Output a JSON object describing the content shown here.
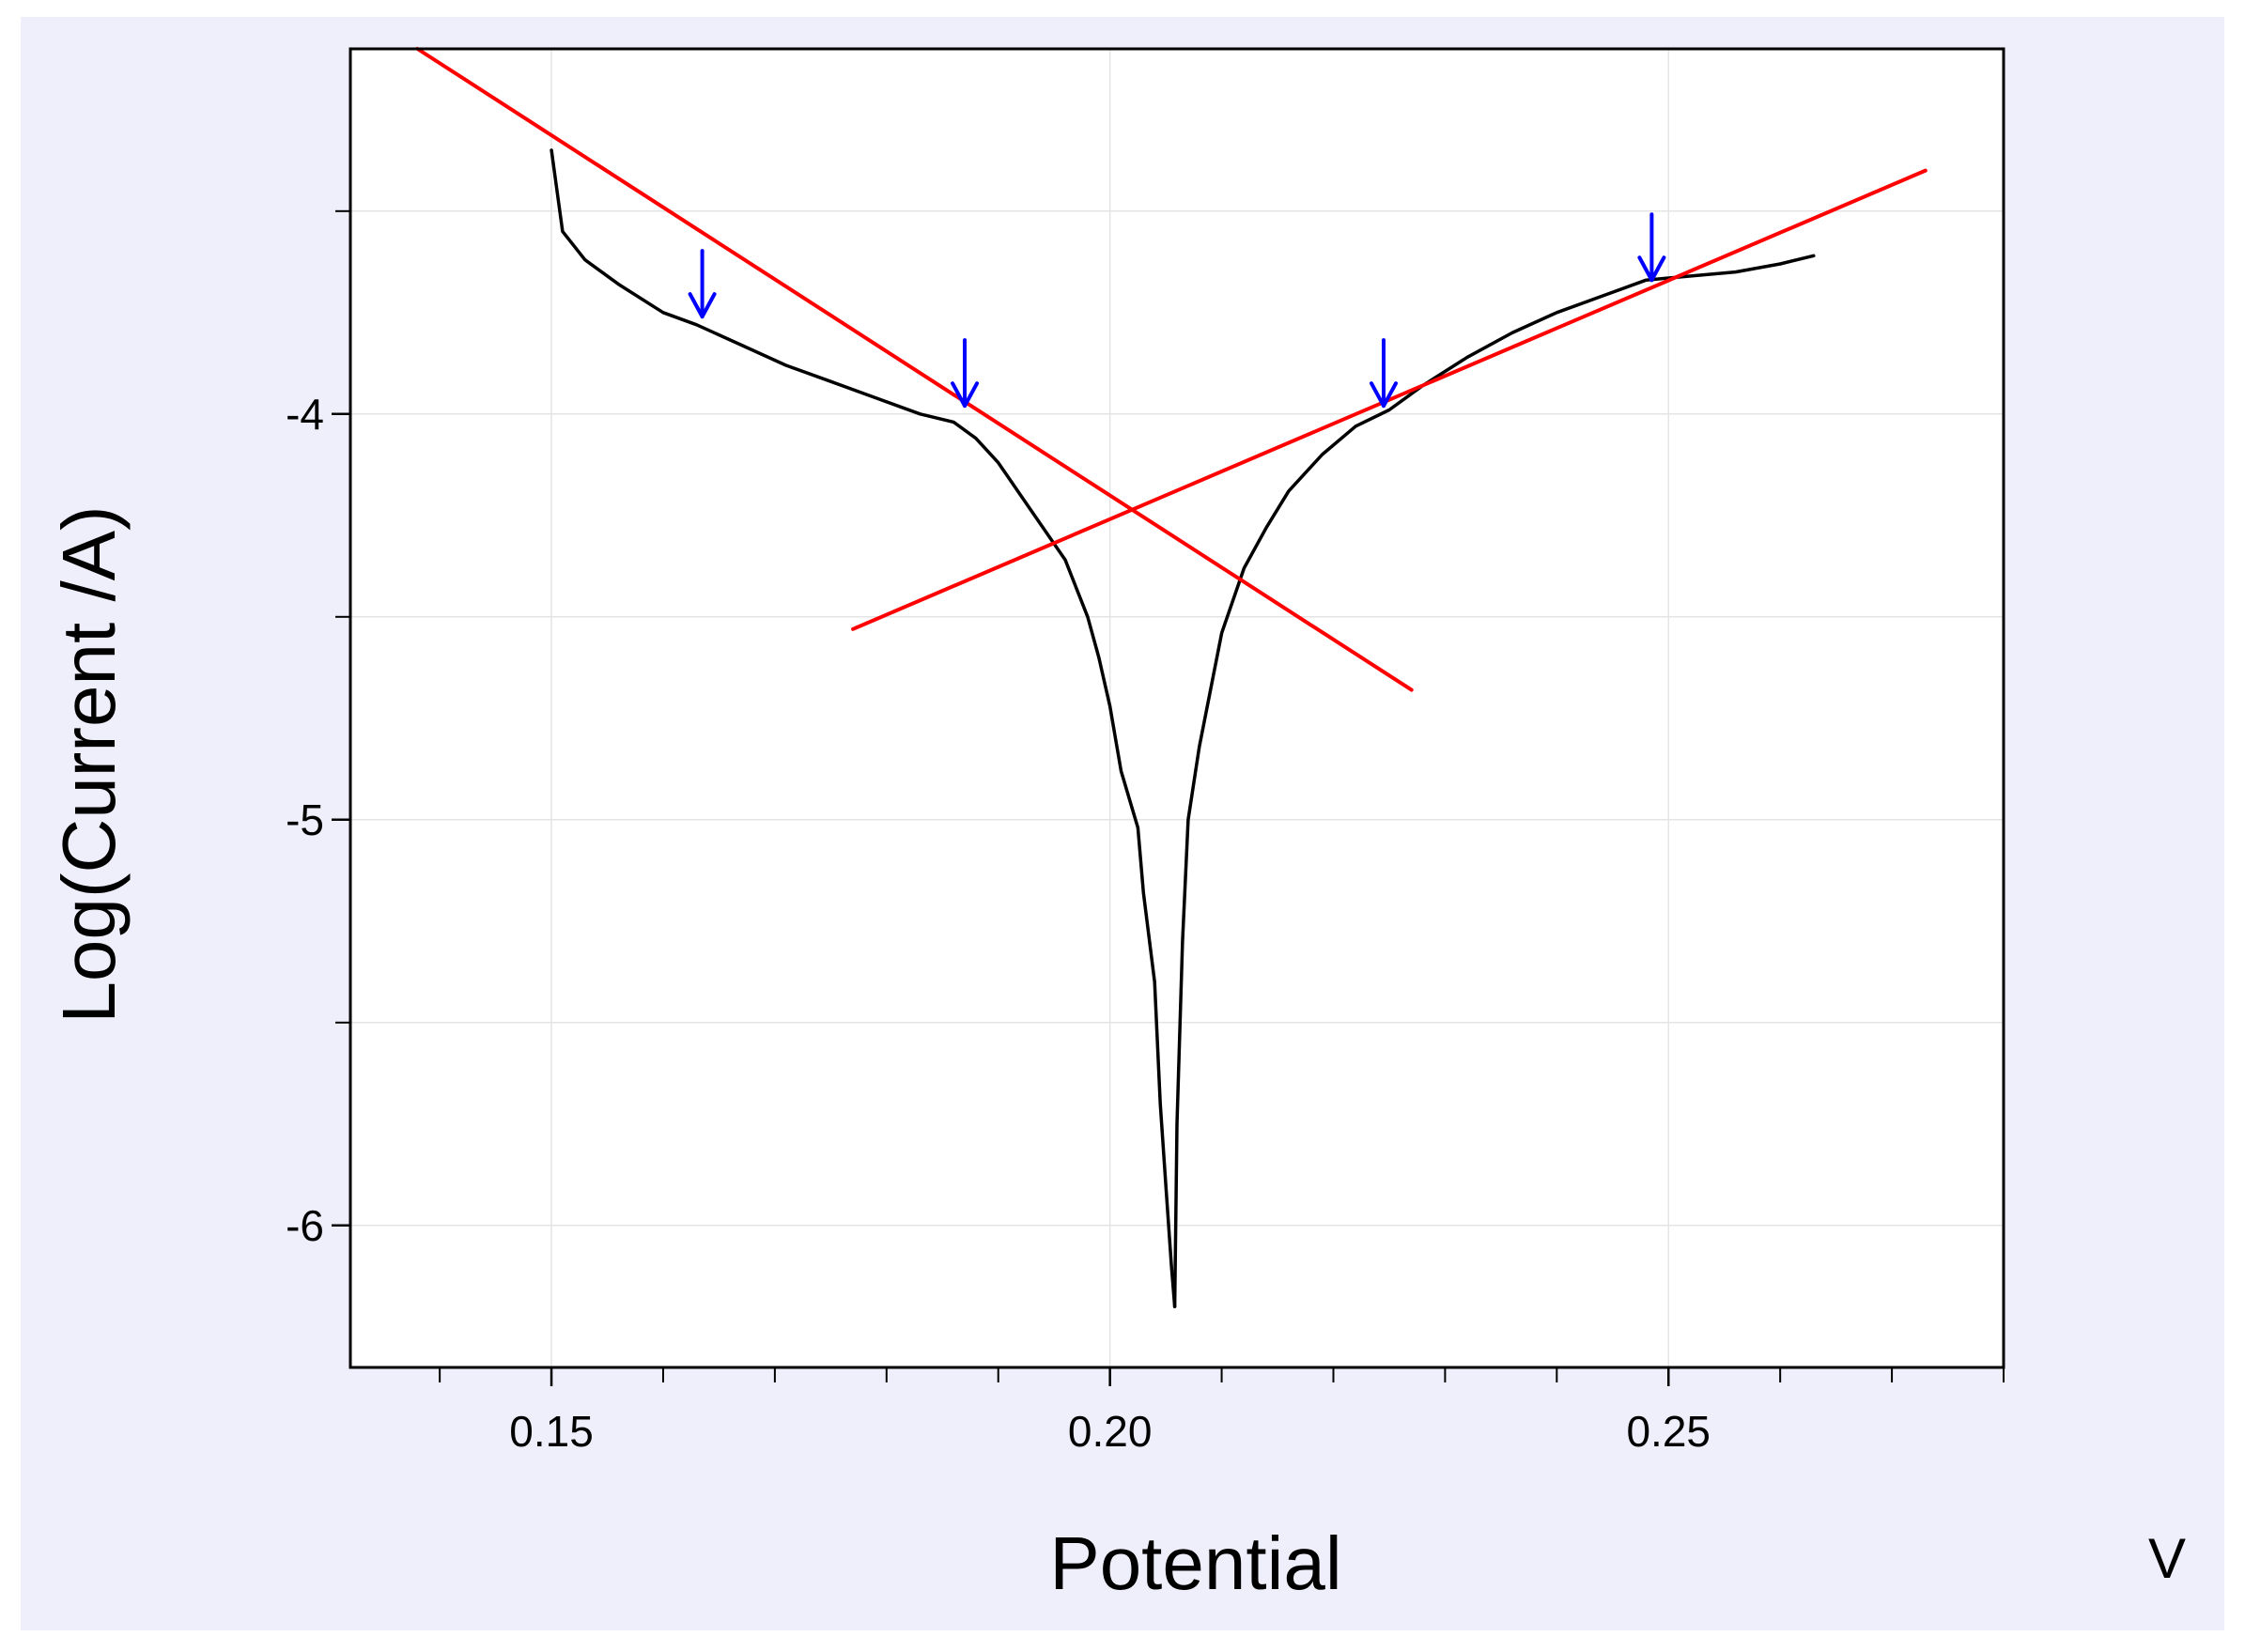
{
  "chart_data": {
    "type": "line",
    "title": "",
    "xlabel": "Potential",
    "xunit": "V",
    "ylabel": "Log(Current /A)",
    "xlim": [
      0.132,
      0.28
    ],
    "ylim": [
      -6.35,
      -3.1
    ],
    "x_ticks": [
      0.15,
      0.2,
      0.25
    ],
    "x_tick_labels": [
      "0.15",
      "0.20",
      "0.25"
    ],
    "x_minor_ticks": [
      0.14,
      0.16,
      0.17,
      0.18,
      0.19,
      0.21,
      0.22,
      0.23,
      0.24,
      0.26,
      0.27,
      0.28
    ],
    "y_ticks": [
      -6,
      -5,
      -4
    ],
    "y_tick_labels": [
      "-6",
      "-5",
      "-4"
    ],
    "y_minor_ticks": [
      -5.5,
      -4.5,
      -3.5
    ],
    "grid": true,
    "legend": "none",
    "colors": {
      "background": "#EFEFFC",
      "plot_background": "#FFFFFF",
      "grid": "#E4E4E4",
      "curve": "#000000",
      "tafel_fit": "#FF0000",
      "marker": "#0000FF"
    },
    "series": [
      {
        "role": "polarization-curve-cathodic",
        "color": "#000000",
        "x": [
          0.15,
          0.1505,
          0.151,
          0.153,
          0.156,
          0.16,
          0.163,
          0.167,
          0.171,
          0.175,
          0.179,
          0.183,
          0.186,
          0.188,
          0.19,
          0.192,
          0.194,
          0.196,
          0.197,
          0.198,
          0.199,
          0.2,
          0.201,
          0.2025,
          0.203,
          0.204,
          0.2045,
          0.205,
          0.2055,
          0.2058
        ],
        "y": [
          -3.35,
          -3.45,
          -3.55,
          -3.62,
          -3.68,
          -3.75,
          -3.78,
          -3.83,
          -3.88,
          -3.92,
          -3.96,
          -4.0,
          -4.02,
          -4.06,
          -4.12,
          -4.2,
          -4.28,
          -4.36,
          -4.43,
          -4.5,
          -4.6,
          -4.72,
          -4.88,
          -5.02,
          -5.18,
          -5.4,
          -5.7,
          -5.9,
          -6.1,
          -6.2
        ]
      },
      {
        "role": "polarization-curve-anodic",
        "color": "#000000",
        "x": [
          0.2058,
          0.206,
          0.2065,
          0.207,
          0.208,
          0.209,
          0.21,
          0.212,
          0.214,
          0.216,
          0.219,
          0.222,
          0.225,
          0.228,
          0.232,
          0.236,
          0.24,
          0.244,
          0.248,
          0.252,
          0.256,
          0.26,
          0.263
        ],
        "y": [
          -6.2,
          -5.75,
          -5.3,
          -5.0,
          -4.82,
          -4.68,
          -4.54,
          -4.38,
          -4.28,
          -4.19,
          -4.1,
          -4.03,
          -3.99,
          -3.93,
          -3.86,
          -3.8,
          -3.75,
          -3.71,
          -3.67,
          -3.66,
          -3.65,
          -3.63,
          -3.61
        ]
      },
      {
        "role": "tafel-fit-cathodic",
        "color": "#FF0000",
        "x": [
          0.138,
          0.227
        ],
        "y": [
          -3.1,
          -4.68
        ]
      },
      {
        "role": "tafel-fit-anodic",
        "color": "#FF0000",
        "x": [
          0.177,
          0.273
        ],
        "y": [
          -4.53,
          -3.4
        ]
      }
    ],
    "markers": [
      {
        "x": 0.1635,
        "y": -3.76,
        "color": "#0000FF",
        "shape": "down-arrow"
      },
      {
        "x": 0.187,
        "y": -3.98,
        "color": "#0000FF",
        "shape": "down-arrow"
      },
      {
        "x": 0.2245,
        "y": -3.98,
        "color": "#0000FF",
        "shape": "down-arrow"
      },
      {
        "x": 0.2485,
        "y": -3.67,
        "color": "#0000FF",
        "shape": "down-arrow"
      }
    ]
  }
}
